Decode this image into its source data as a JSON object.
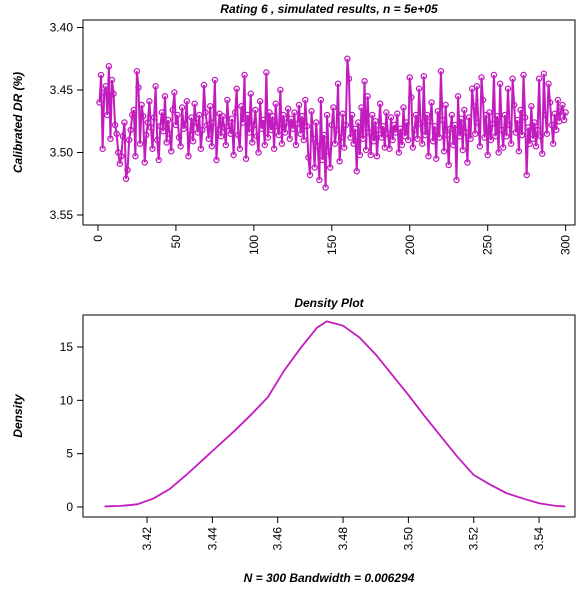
{
  "chart_data": [
    {
      "type": "line",
      "title": "Rating 6 , simulated results, n =  5e+05",
      "y_label": "Calibrated DR (%)",
      "color": "#c21cbf",
      "markers": true,
      "x": [
        1,
        2,
        3,
        4,
        5,
        6,
        7,
        8,
        9,
        10,
        11,
        12,
        13,
        14,
        15,
        16,
        17,
        18,
        19,
        20,
        21,
        22,
        23,
        24,
        25,
        26,
        27,
        28,
        29,
        30,
        31,
        32,
        33,
        34,
        35,
        36,
        37,
        38,
        39,
        40,
        41,
        42,
        43,
        44,
        45,
        46,
        47,
        48,
        49,
        50,
        51,
        52,
        53,
        54,
        55,
        56,
        57,
        58,
        59,
        60,
        61,
        62,
        63,
        64,
        65,
        66,
        67,
        68,
        69,
        70,
        71,
        72,
        73,
        74,
        75,
        76,
        77,
        78,
        79,
        80,
        81,
        82,
        83,
        84,
        85,
        86,
        87,
        88,
        89,
        90,
        91,
        92,
        93,
        94,
        95,
        96,
        97,
        98,
        99,
        100,
        101,
        102,
        103,
        104,
        105,
        106,
        107,
        108,
        109,
        110,
        111,
        112,
        113,
        114,
        115,
        116,
        117,
        118,
        119,
        120,
        121,
        122,
        123,
        124,
        125,
        126,
        127,
        128,
        129,
        130,
        131,
        132,
        133,
        134,
        135,
        136,
        137,
        138,
        139,
        140,
        141,
        142,
        143,
        144,
        145,
        146,
        147,
        148,
        149,
        150,
        151,
        152,
        153,
        154,
        155,
        156,
        157,
        158,
        159,
        160,
        161,
        162,
        163,
        164,
        165,
        166,
        167,
        168,
        169,
        170,
        171,
        172,
        173,
        174,
        175,
        176,
        177,
        178,
        179,
        180,
        181,
        182,
        183,
        184,
        185,
        186,
        187,
        188,
        189,
        190,
        191,
        192,
        193,
        194,
        195,
        196,
        197,
        198,
        199,
        200,
        201,
        202,
        203,
        204,
        205,
        206,
        207,
        208,
        209,
        210,
        211,
        212,
        213,
        214,
        215,
        216,
        217,
        218,
        219,
        220,
        221,
        222,
        223,
        224,
        225,
        226,
        227,
        228,
        229,
        230,
        231,
        232,
        233,
        234,
        235,
        236,
        237,
        238,
        239,
        240,
        241,
        242,
        243,
        244,
        245,
        246,
        247,
        248,
        249,
        250,
        251,
        252,
        253,
        254,
        255,
        256,
        257,
        258,
        259,
        260,
        261,
        262,
        263,
        264,
        265,
        266,
        267,
        268,
        269,
        270,
        271,
        272,
        273,
        274,
        275,
        276,
        277,
        278,
        279,
        280,
        281,
        282,
        283,
        284,
        285,
        286,
        287,
        288,
        289,
        290,
        291,
        292,
        293,
        294,
        295,
        296,
        297,
        298,
        299,
        300
      ],
      "values": [
        3.46,
        3.438,
        3.497,
        3.452,
        3.447,
        3.47,
        3.431,
        3.489,
        3.442,
        3.453,
        3.478,
        3.485,
        3.5,
        3.509,
        3.503,
        3.487,
        3.476,
        3.521,
        3.514,
        3.49,
        3.482,
        3.47,
        3.466,
        3.503,
        3.435,
        3.448,
        3.493,
        3.462,
        3.471,
        3.508,
        3.486,
        3.476,
        3.459,
        3.48,
        3.497,
        3.472,
        3.447,
        3.49,
        3.506,
        3.479,
        3.468,
        3.483,
        3.455,
        3.492,
        3.474,
        3.485,
        3.499,
        3.466,
        3.452,
        3.478,
        3.47,
        3.488,
        3.495,
        3.464,
        3.481,
        3.477,
        3.459,
        3.503,
        3.486,
        3.472,
        3.491,
        3.461,
        3.476,
        3.484,
        3.47,
        3.497,
        3.482,
        3.446,
        3.468,
        3.478,
        3.489,
        3.463,
        3.495,
        3.476,
        3.442,
        3.506,
        3.482,
        3.469,
        3.487,
        3.471,
        3.48,
        3.494,
        3.458,
        3.479,
        3.485,
        3.473,
        3.502,
        3.468,
        3.449,
        3.486,
        3.497,
        3.463,
        3.476,
        3.438,
        3.505,
        3.47,
        3.484,
        3.453,
        3.492,
        3.478,
        3.466,
        3.487,
        3.5,
        3.459,
        3.481,
        3.474,
        3.494,
        3.436,
        3.488,
        3.468,
        3.482,
        3.471,
        3.497,
        3.461,
        3.479,
        3.486,
        3.45,
        3.493,
        3.47,
        3.484,
        3.476,
        3.465,
        3.489,
        3.473,
        3.481,
        3.468,
        3.494,
        3.477,
        3.462,
        3.485,
        3.471,
        3.49,
        3.458,
        3.479,
        3.504,
        3.518,
        3.467,
        3.489,
        3.512,
        3.476,
        3.495,
        3.522,
        3.458,
        3.506,
        3.486,
        3.528,
        3.47,
        3.499,
        3.512,
        3.478,
        3.464,
        3.493,
        3.482,
        3.445,
        3.507,
        3.488,
        3.469,
        3.496,
        3.478,
        3.425,
        3.441,
        3.488,
        3.47,
        3.493,
        3.481,
        3.515,
        3.476,
        3.502,
        3.464,
        3.489,
        3.443,
        3.498,
        3.455,
        3.484,
        3.502,
        3.47,
        3.491,
        3.475,
        3.503,
        3.482,
        3.461,
        3.488,
        3.479,
        3.496,
        3.468,
        3.485,
        3.497,
        3.472,
        3.49,
        3.478,
        3.484,
        3.469,
        3.5,
        3.481,
        3.494,
        3.464,
        3.487,
        3.476,
        3.49,
        3.44,
        3.456,
        3.496,
        3.482,
        3.47,
        3.489,
        3.449,
        3.477,
        3.493,
        3.439,
        3.486,
        3.47,
        3.503,
        3.475,
        3.46,
        3.491,
        3.479,
        3.505,
        3.467,
        3.488,
        3.435,
        3.474,
        3.499,
        3.462,
        3.486,
        3.51,
        3.481,
        3.47,
        3.494,
        3.478,
        3.522,
        3.455,
        3.487,
        3.473,
        3.498,
        3.466,
        3.484,
        3.508,
        3.472,
        3.489,
        3.449,
        3.463,
        3.485,
        3.447,
        3.476,
        3.495,
        3.44,
        3.458,
        3.488,
        3.47,
        3.502,
        3.468,
        3.49,
        3.477,
        3.438,
        3.487,
        3.471,
        3.5,
        3.445,
        3.482,
        3.496,
        3.47,
        3.487,
        3.449,
        3.478,
        3.493,
        3.441,
        3.462,
        3.484,
        3.474,
        3.499,
        3.466,
        3.486,
        3.438,
        3.472,
        3.518,
        3.48,
        3.493,
        3.463,
        3.489,
        3.476,
        3.495,
        3.482,
        3.441,
        3.487,
        3.501,
        3.437,
        3.47,
        3.485,
        3.445,
        3.46,
        3.478,
        3.493,
        3.469,
        3.482,
        3.458,
        3.475,
        3.467,
        3.462,
        3.474,
        3.468
      ],
      "xlim": [
        -9.6,
        306
      ],
      "xticks": [
        0,
        50,
        100,
        150,
        200,
        250,
        300
      ],
      "ylim": [
        3.558,
        3.394
      ],
      "yticks": [
        {
          "value": 3.4,
          "label": "3.40"
        },
        3.45,
        {
          "value": 3.5,
          "label": "3.50"
        },
        3.55
      ]
    },
    {
      "type": "line",
      "title": "Density Plot",
      "y_label": "Density",
      "x_label": "N = 300   Bandwidth = 0.006294",
      "color": "#c21cbf",
      "markers": false,
      "x": [
        3.407,
        3.412,
        3.417,
        3.422,
        3.427,
        3.432,
        3.437,
        3.442,
        3.447,
        3.452,
        3.457,
        3.462,
        3.467,
        3.472,
        3.475,
        3.48,
        3.485,
        3.49,
        3.495,
        3.5,
        3.505,
        3.51,
        3.515,
        3.52,
        3.525,
        3.53,
        3.535,
        3.54,
        3.545,
        3.548
      ],
      "values": [
        0.05,
        0.1,
        0.25,
        0.8,
        1.7,
        3.0,
        4.4,
        5.8,
        7.2,
        8.7,
        10.3,
        12.8,
        14.9,
        16.8,
        17.4,
        17.0,
        15.9,
        14.3,
        12.4,
        10.5,
        8.5,
        6.6,
        4.7,
        3.0,
        2.1,
        1.3,
        0.8,
        0.35,
        0.1,
        0.05
      ],
      "xlim": [
        3.4004,
        3.551
      ],
      "xticks": [
        3.42,
        3.44,
        3.46,
        3.48,
        {
          "value": 3.5,
          "label": "3.50"
        },
        3.52,
        3.54
      ],
      "ylim": [
        -0.94,
        18.0
      ],
      "yticks": [
        0,
        5,
        10,
        15
      ]
    }
  ]
}
